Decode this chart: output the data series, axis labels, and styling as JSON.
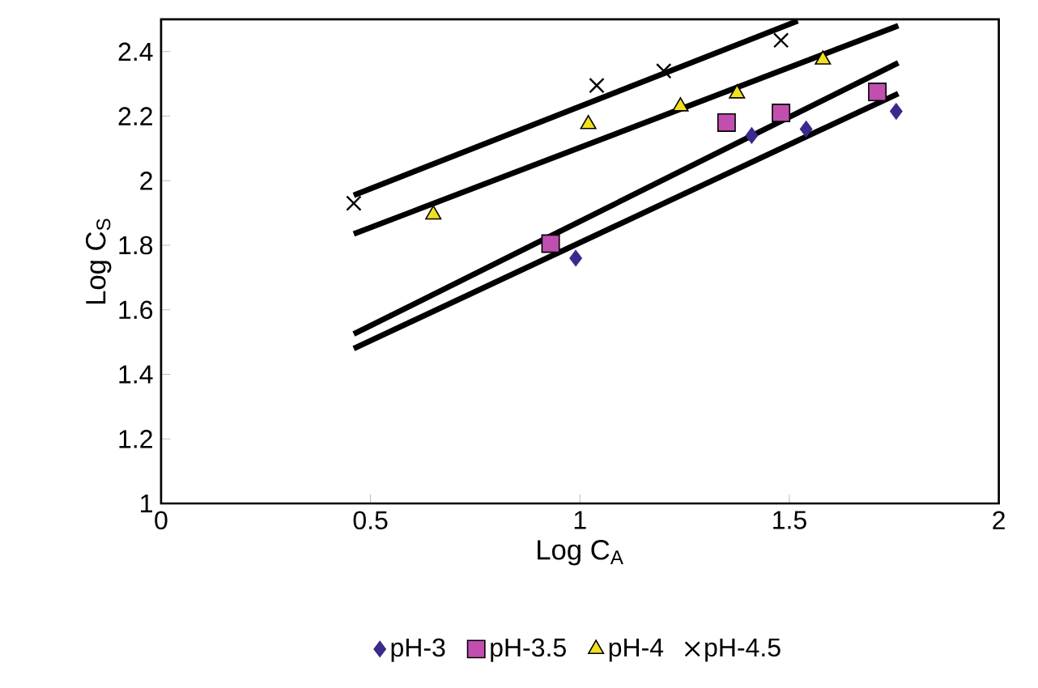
{
  "chart_data": {
    "type": "scatter",
    "xlabel": "Log C$_{A}$",
    "ylabel": "Log C$_{S}$",
    "xlim": [
      0,
      2
    ],
    "ylim": [
      1,
      2.5
    ],
    "xticks": [
      0,
      0.5,
      1,
      1.5,
      2
    ],
    "yticks": [
      1,
      1.2,
      1.4,
      1.6,
      1.8,
      2,
      2.2,
      2.4
    ],
    "grid": false,
    "legend": "bottom",
    "series": [
      {
        "name": "pH-3",
        "color": "#3a2a8c",
        "marker": "diamond",
        "x": [
          0.99,
          1.41,
          1.54,
          1.755
        ],
        "values": [
          1.76,
          2.14,
          2.16,
          2.215
        ]
      },
      {
        "name": "pH-3.5",
        "color": "#c04fb0",
        "marker": "square",
        "x": [
          0.93,
          1.35,
          1.48,
          1.71
        ],
        "values": [
          1.805,
          2.18,
          2.21,
          2.275
        ]
      },
      {
        "name": "pH-4",
        "color": "#f0e020",
        "marker": "triangle",
        "x": [
          0.65,
          1.02,
          1.24,
          1.375,
          1.58
        ],
        "values": [
          1.895,
          2.175,
          2.23,
          2.27,
          2.375
        ]
      },
      {
        "name": "pH-4.5",
        "color": "#000000",
        "marker": "cross",
        "x": [
          0.46,
          1.04,
          1.2,
          1.48
        ],
        "values": [
          1.93,
          2.295,
          2.34,
          2.435
        ]
      },
      {
        "type": "line",
        "color": "#000000",
        "marker": "none",
        "line_style": "solid",
        "x": [
          0.46,
          1.76
        ],
        "values": [
          1.48,
          2.27
        ]
      },
      {
        "type": "line",
        "color": "#000000",
        "marker": "none",
        "line_style": "solid",
        "x": [
          0.46,
          1.76
        ],
        "values": [
          1.525,
          2.365
        ]
      },
      {
        "type": "line",
        "color": "#000000",
        "marker": "none",
        "line_style": "solid",
        "x": [
          0.46,
          1.76
        ],
        "values": [
          1.835,
          2.48
        ]
      },
      {
        "type": "line",
        "color": "#000000",
        "marker": "none",
        "line_style": "solid",
        "x": [
          0.46,
          1.52
        ],
        "values": [
          1.955,
          2.495
        ]
      }
    ]
  }
}
